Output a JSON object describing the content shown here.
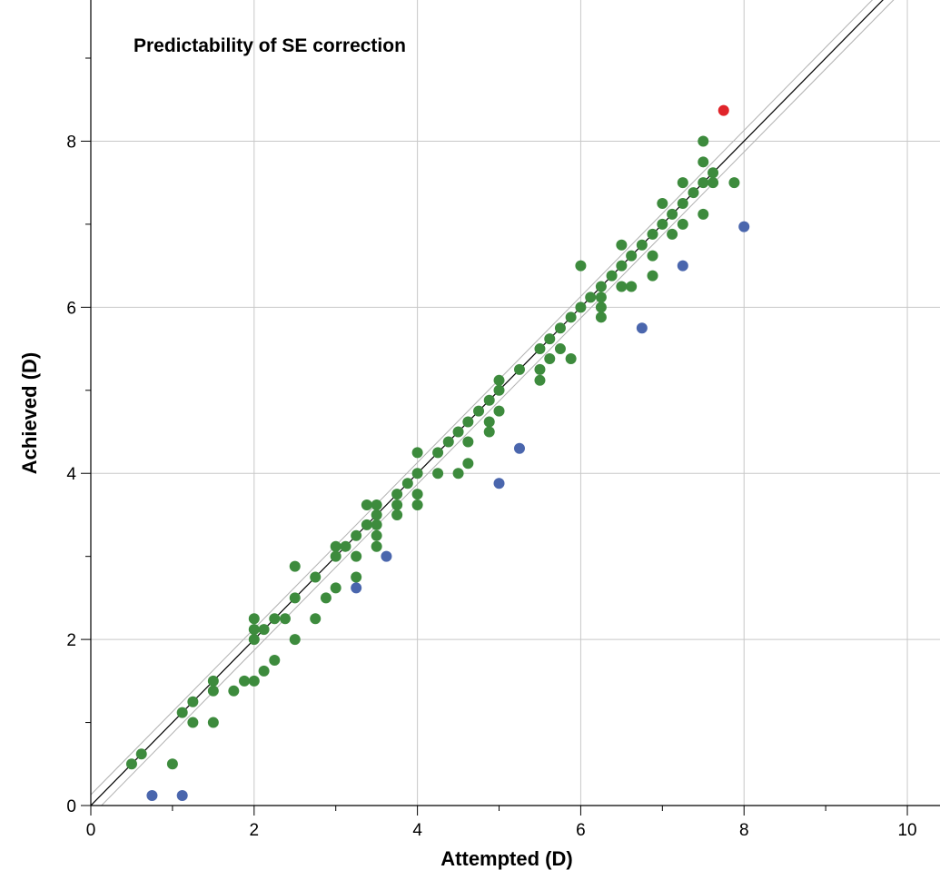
{
  "chart_data": {
    "type": "scatter",
    "title": "Predictability of SE correction",
    "xlabel": "Attempted (D)",
    "ylabel": "Achieved (D)",
    "xlim": [
      0,
      10.4
    ],
    "ylim": [
      0,
      9.7
    ],
    "x_major_ticks": [
      0,
      2,
      4,
      6,
      8,
      10
    ],
    "y_major_ticks": [
      0,
      2,
      4,
      6,
      8
    ],
    "x_minor_ticks": [
      1,
      3,
      5,
      7,
      9
    ],
    "y_minor_ticks": [
      1,
      3,
      5,
      7,
      9
    ],
    "x_tick_labels": [
      "0",
      "2",
      "4",
      "6",
      "8",
      "10"
    ],
    "y_tick_labels": [
      "0",
      "2",
      "4",
      "6",
      "8"
    ],
    "grid": true,
    "reference_lines": [
      {
        "kind": "identity",
        "points": [
          [
            0,
            0
          ],
          [
            10.4,
            10.4
          ]
        ],
        "color": "#000000"
      },
      {
        "kind": "plus_minus_band",
        "points": [
          [
            0,
            0.13
          ],
          [
            10.4,
            10.53
          ]
        ],
        "color": "#b0b0b0"
      },
      {
        "kind": "plus_minus_band",
        "points": [
          [
            0,
            -0.13
          ],
          [
            10.4,
            10.27
          ]
        ],
        "color": "#b0b0b0"
      }
    ],
    "colors": {
      "green": "#3d8b3d",
      "blue": "#4a66ad",
      "red": "#e0242a"
    },
    "series": [
      {
        "color": "#3d8b3d",
        "points": [
          [
            0.5,
            0.5
          ],
          [
            0.62,
            0.62
          ],
          [
            1.0,
            0.5
          ],
          [
            1.12,
            1.12
          ],
          [
            1.25,
            1.25
          ],
          [
            1.25,
            1.0
          ],
          [
            1.5,
            1.5
          ],
          [
            1.5,
            1.38
          ],
          [
            1.5,
            1.0
          ],
          [
            1.75,
            1.38
          ],
          [
            1.88,
            1.5
          ],
          [
            2.0,
            2.25
          ],
          [
            2.0,
            2.12
          ],
          [
            2.0,
            2.0
          ],
          [
            2.0,
            1.5
          ],
          [
            2.12,
            2.12
          ],
          [
            2.12,
            1.62
          ],
          [
            2.25,
            2.25
          ],
          [
            2.25,
            1.75
          ],
          [
            2.38,
            2.25
          ],
          [
            2.5,
            2.88
          ],
          [
            2.5,
            2.5
          ],
          [
            2.5,
            2.0
          ],
          [
            2.75,
            2.75
          ],
          [
            2.75,
            2.25
          ],
          [
            2.88,
            2.5
          ],
          [
            3.0,
            3.12
          ],
          [
            3.0,
            3.0
          ],
          [
            3.0,
            2.62
          ],
          [
            3.12,
            3.12
          ],
          [
            3.25,
            3.25
          ],
          [
            3.25,
            3.0
          ],
          [
            3.25,
            2.75
          ],
          [
            3.38,
            3.62
          ],
          [
            3.38,
            3.38
          ],
          [
            3.5,
            3.62
          ],
          [
            3.5,
            3.5
          ],
          [
            3.5,
            3.38
          ],
          [
            3.5,
            3.25
          ],
          [
            3.5,
            3.12
          ],
          [
            3.75,
            3.75
          ],
          [
            3.75,
            3.62
          ],
          [
            3.75,
            3.5
          ],
          [
            3.88,
            3.88
          ],
          [
            4.0,
            4.25
          ],
          [
            4.0,
            4.0
          ],
          [
            4.0,
            3.75
          ],
          [
            4.0,
            3.62
          ],
          [
            4.25,
            4.25
          ],
          [
            4.25,
            4.0
          ],
          [
            4.38,
            4.38
          ],
          [
            4.5,
            4.5
          ],
          [
            4.5,
            4.0
          ],
          [
            4.62,
            4.62
          ],
          [
            4.62,
            4.38
          ],
          [
            4.62,
            4.12
          ],
          [
            4.75,
            4.75
          ],
          [
            4.88,
            4.88
          ],
          [
            4.88,
            4.62
          ],
          [
            4.88,
            4.5
          ],
          [
            5.0,
            5.12
          ],
          [
            5.0,
            5.0
          ],
          [
            5.0,
            4.75
          ],
          [
            5.25,
            5.25
          ],
          [
            5.5,
            5.5
          ],
          [
            5.5,
            5.25
          ],
          [
            5.5,
            5.12
          ],
          [
            5.62,
            5.62
          ],
          [
            5.62,
            5.38
          ],
          [
            5.75,
            5.75
          ],
          [
            5.75,
            5.5
          ],
          [
            5.88,
            5.88
          ],
          [
            5.88,
            5.38
          ],
          [
            6.0,
            6.5
          ],
          [
            6.0,
            6.0
          ],
          [
            6.12,
            6.12
          ],
          [
            6.25,
            6.25
          ],
          [
            6.25,
            6.12
          ],
          [
            6.25,
            6.0
          ],
          [
            6.25,
            5.88
          ],
          [
            6.38,
            6.38
          ],
          [
            6.5,
            6.75
          ],
          [
            6.5,
            6.5
          ],
          [
            6.5,
            6.25
          ],
          [
            6.62,
            6.62
          ],
          [
            6.62,
            6.25
          ],
          [
            6.75,
            6.75
          ],
          [
            6.88,
            6.88
          ],
          [
            6.88,
            6.62
          ],
          [
            6.88,
            6.38
          ],
          [
            7.0,
            7.25
          ],
          [
            7.0,
            7.0
          ],
          [
            7.12,
            7.12
          ],
          [
            7.12,
            6.88
          ],
          [
            7.25,
            7.5
          ],
          [
            7.25,
            7.25
          ],
          [
            7.25,
            7.0
          ],
          [
            7.38,
            7.38
          ],
          [
            7.5,
            8.0
          ],
          [
            7.5,
            7.75
          ],
          [
            7.5,
            7.5
          ],
          [
            7.5,
            7.12
          ],
          [
            7.62,
            7.62
          ],
          [
            7.62,
            7.5
          ],
          [
            7.88,
            7.5
          ]
        ]
      },
      {
        "color": "#4a66ad",
        "points": [
          [
            0.75,
            0.12
          ],
          [
            1.12,
            0.12
          ],
          [
            3.25,
            2.62
          ],
          [
            3.62,
            3.0
          ],
          [
            5.0,
            3.88
          ],
          [
            5.25,
            4.3
          ],
          [
            6.75,
            5.75
          ],
          [
            7.25,
            6.5
          ],
          [
            8.0,
            6.97
          ]
        ]
      },
      {
        "color": "#e0242a",
        "points": [
          [
            7.75,
            8.37
          ]
        ]
      }
    ]
  }
}
